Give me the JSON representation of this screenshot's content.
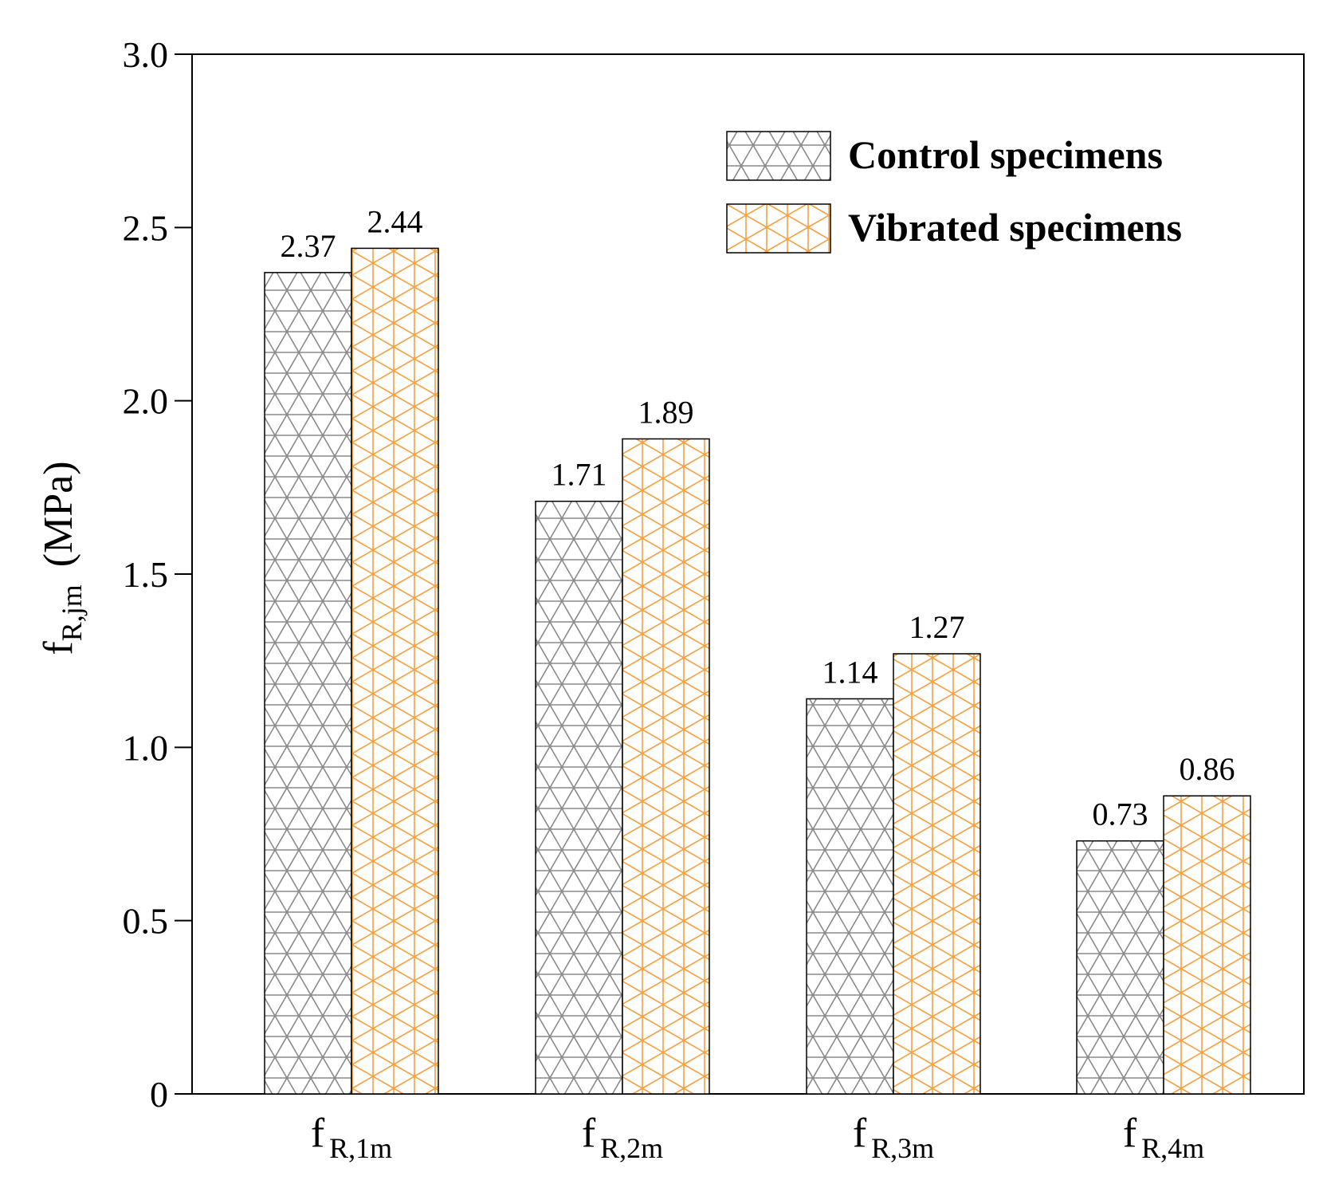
{
  "chart_data": {
    "type": "bar",
    "title": "",
    "xlabel": "",
    "ylabel": {
      "main": "f",
      "subscript": "R,jm",
      "unit": "(MPa)"
    },
    "ylim": [
      0,
      3.0
    ],
    "yticks": [
      "0",
      "0.5",
      "1.0",
      "1.5",
      "2.0",
      "2.5",
      "3.0"
    ],
    "ytick_values": [
      0,
      0.5,
      1.0,
      1.5,
      2.0,
      2.5,
      3.0
    ],
    "categories": [
      {
        "main": "f",
        "sub": "R,1m"
      },
      {
        "main": "f",
        "sub": "R,2m"
      },
      {
        "main": "f",
        "sub": "R,3m"
      },
      {
        "main": "f",
        "sub": "R,4m"
      }
    ],
    "series": [
      {
        "name": "Control specimens",
        "values": [
          2.37,
          1.71,
          1.14,
          0.73
        ],
        "labels": [
          "2.37",
          "1.71",
          "1.14",
          "0.73"
        ],
        "color": "#8a8a8a",
        "pattern": "triangular-grid"
      },
      {
        "name": "Vibrated specimens",
        "values": [
          2.44,
          1.89,
          1.27,
          0.86
        ],
        "labels": [
          "2.44",
          "1.89",
          "1.27",
          "0.86"
        ],
        "color": "#f5a040",
        "pattern": "triangular-grid-vertical"
      }
    ],
    "legend_position": "top-right",
    "grid": false
  }
}
